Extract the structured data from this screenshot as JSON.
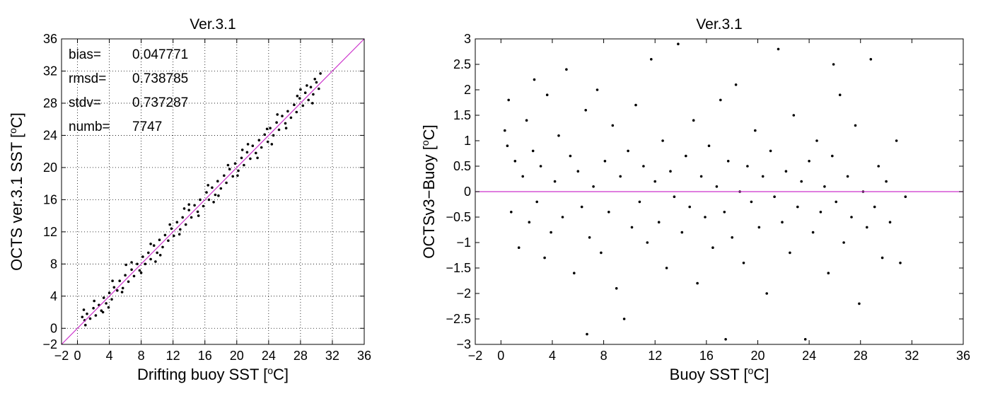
{
  "chart_data": [
    {
      "type": "scatter",
      "title": "Ver.3.1",
      "xlabel": "Drifting buoy SST [",
      "ylabel": "OCTS ver.3.1 SST [",
      "unit_suffix": "C]",
      "unit_super": "o",
      "xlim": [
        -2,
        36
      ],
      "ylim": [
        -2,
        36
      ],
      "xticks": [
        -2,
        0,
        4,
        8,
        12,
        16,
        20,
        24,
        28,
        32,
        36
      ],
      "yticks": [
        -2,
        0,
        4,
        8,
        12,
        16,
        20,
        24,
        28,
        32,
        36
      ],
      "grid": true,
      "reference_line": {
        "type": "identity",
        "color": "#cc33cc"
      },
      "point_color": "#000000",
      "stats": [
        {
          "label": "bias=",
          "value": "0.047771"
        },
        {
          "label": "rmsd=",
          "value": "0.738785"
        },
        {
          "label": "stdv=",
          "value": "0.737287"
        },
        {
          "label": "numb=",
          "value": "7747"
        }
      ],
      "points": [
        [
          0.6,
          1.4
        ],
        [
          0.9,
          1.0
        ],
        [
          1.2,
          1.8
        ],
        [
          1.6,
          1.2
        ],
        [
          2.0,
          2.5
        ],
        [
          2.3,
          1.6
        ],
        [
          2.7,
          2.9
        ],
        [
          3.0,
          2.2
        ],
        [
          3.3,
          3.8
        ],
        [
          3.6,
          3.1
        ],
        [
          4.0,
          4.4
        ],
        [
          4.3,
          3.6
        ],
        [
          4.6,
          5.1
        ],
        [
          5.0,
          4.7
        ],
        [
          5.3,
          5.9
        ],
        [
          5.7,
          5.0
        ],
        [
          6.0,
          6.6
        ],
        [
          6.4,
          5.8
        ],
        [
          6.8,
          7.3
        ],
        [
          7.1,
          6.5
        ],
        [
          7.5,
          8.0
        ],
        [
          7.8,
          7.2
        ],
        [
          8.2,
          8.9
        ],
        [
          8.5,
          8.0
        ],
        [
          8.9,
          9.4
        ],
        [
          9.2,
          8.6
        ],
        [
          9.6,
          10.3
        ],
        [
          10.0,
          9.4
        ],
        [
          10.3,
          11.0
        ],
        [
          10.7,
          10.1
        ],
        [
          11.0,
          11.6
        ],
        [
          11.4,
          10.9
        ],
        [
          11.8,
          12.4
        ],
        [
          12.1,
          11.5
        ],
        [
          12.5,
          13.2
        ],
        [
          12.9,
          12.3
        ],
        [
          13.2,
          13.8
        ],
        [
          13.6,
          12.9
        ],
        [
          14.0,
          14.7
        ],
        [
          14.3,
          13.8
        ],
        [
          14.7,
          15.3
        ],
        [
          15.1,
          14.5
        ],
        [
          15.4,
          16.0
        ],
        [
          15.8,
          15.2
        ],
        [
          16.2,
          16.9
        ],
        [
          16.5,
          16.0
        ],
        [
          16.9,
          17.5
        ],
        [
          17.3,
          16.6
        ],
        [
          17.6,
          18.3
        ],
        [
          18.0,
          17.4
        ],
        [
          18.4,
          19.0
        ],
        [
          18.7,
          18.1
        ],
        [
          19.1,
          19.8
        ],
        [
          19.5,
          18.9
        ],
        [
          19.8,
          20.5
        ],
        [
          20.2,
          19.6
        ],
        [
          20.6,
          21.2
        ],
        [
          20.9,
          20.3
        ],
        [
          21.3,
          21.9
        ],
        [
          21.7,
          21.1
        ],
        [
          22.0,
          22.7
        ],
        [
          22.4,
          21.8
        ],
        [
          22.8,
          23.4
        ],
        [
          23.1,
          22.5
        ],
        [
          23.5,
          24.1
        ],
        [
          23.9,
          23.2
        ],
        [
          24.2,
          24.9
        ],
        [
          24.6,
          24.0
        ],
        [
          25.0,
          25.6
        ],
        [
          25.3,
          24.7
        ],
        [
          25.7,
          26.4
        ],
        [
          26.1,
          25.5
        ],
        [
          26.4,
          27.0
        ],
        [
          26.8,
          26.2
        ],
        [
          27.2,
          27.8
        ],
        [
          27.5,
          26.9
        ],
        [
          27.9,
          28.6
        ],
        [
          28.3,
          27.7
        ],
        [
          28.6,
          29.3
        ],
        [
          29.0,
          28.4
        ],
        [
          29.3,
          30.0
        ],
        [
          29.6,
          29.1
        ],
        [
          30.0,
          30.6
        ],
        [
          30.3,
          29.8
        ],
        [
          29.8,
          31.0
        ],
        [
          29.5,
          28.0
        ],
        [
          28.8,
          30.2
        ],
        [
          27.6,
          28.9
        ],
        [
          26.2,
          24.9
        ],
        [
          25.1,
          26.6
        ],
        [
          23.8,
          24.8
        ],
        [
          22.6,
          21.2
        ],
        [
          21.4,
          22.9
        ],
        [
          20.1,
          19.0
        ],
        [
          18.9,
          20.3
        ],
        [
          17.7,
          16.5
        ],
        [
          16.4,
          17.8
        ],
        [
          15.2,
          14.0
        ],
        [
          14.0,
          15.4
        ],
        [
          12.8,
          11.7
        ],
        [
          11.6,
          12.9
        ],
        [
          10.4,
          9.1
        ],
        [
          9.2,
          10.5
        ],
        [
          8.0,
          6.9
        ],
        [
          6.8,
          8.2
        ],
        [
          5.6,
          4.5
        ],
        [
          4.4,
          5.9
        ],
        [
          3.2,
          2.0
        ],
        [
          2.1,
          3.4
        ],
        [
          1.0,
          0.4
        ],
        [
          30.5,
          31.7
        ],
        [
          0.8,
          2.3
        ],
        [
          3.9,
          2.6
        ],
        [
          6.1,
          7.9
        ],
        [
          9.8,
          8.3
        ],
        [
          13.4,
          14.9
        ],
        [
          17.1,
          15.7
        ],
        [
          20.7,
          22.2
        ],
        [
          24.4,
          22.9
        ],
        [
          28.0,
          29.7
        ]
      ]
    },
    {
      "type": "scatter",
      "title": "Ver.3.1",
      "xlabel": "Buoy SST [",
      "ylabel": "OCTSv3−Buoy [",
      "unit_suffix": "C]",
      "unit_super": "o",
      "xlim": [
        -2,
        36
      ],
      "ylim": [
        -3,
        3
      ],
      "xticks": [
        -2,
        0,
        4,
        8,
        12,
        16,
        20,
        24,
        28,
        32,
        36
      ],
      "xtick_labels": [
        "−2",
        "0",
        "4",
        "8",
        "12",
        "16",
        "20",
        "24",
        "28",
        "32",
        "36"
      ],
      "yticks": [
        -3,
        -2.5,
        -2,
        -1.5,
        -1,
        -0.5,
        0,
        0.5,
        1,
        1.5,
        2,
        2.5,
        3
      ],
      "ytick_labels": [
        "−3",
        "−2.5",
        "−2",
        "−1.5",
        "−1",
        "−0.5",
        "0",
        "0.5",
        "1",
        "1.5",
        "2",
        "2.5",
        "3"
      ],
      "grid": false,
      "reference_line": {
        "type": "zero",
        "color": "#cc33cc"
      },
      "point_color": "#000000",
      "points": [
        [
          0.3,
          1.2
        ],
        [
          0.5,
          0.9
        ],
        [
          0.8,
          -0.4
        ],
        [
          1.1,
          0.6
        ],
        [
          1.4,
          -1.1
        ],
        [
          1.7,
          0.3
        ],
        [
          2.0,
          1.4
        ],
        [
          2.2,
          -0.6
        ],
        [
          2.5,
          0.8
        ],
        [
          2.8,
          -0.2
        ],
        [
          3.1,
          0.5
        ],
        [
          3.4,
          -1.3
        ],
        [
          3.6,
          1.9
        ],
        [
          3.9,
          -0.8
        ],
        [
          4.2,
          0.2
        ],
        [
          4.5,
          1.1
        ],
        [
          4.8,
          -0.5
        ],
        [
          5.1,
          2.4
        ],
        [
          5.4,
          0.7
        ],
        [
          5.7,
          -1.6
        ],
        [
          6.0,
          0.4
        ],
        [
          6.3,
          -0.3
        ],
        [
          6.6,
          1.6
        ],
        [
          6.9,
          -0.9
        ],
        [
          7.2,
          0.1
        ],
        [
          7.5,
          2.0
        ],
        [
          7.8,
          -1.2
        ],
        [
          8.1,
          0.6
        ],
        [
          8.4,
          -0.4
        ],
        [
          8.7,
          1.3
        ],
        [
          9.0,
          -1.9
        ],
        [
          9.3,
          0.3
        ],
        [
          9.6,
          -2.5
        ],
        [
          9.9,
          0.8
        ],
        [
          10.2,
          -0.7
        ],
        [
          10.5,
          1.7
        ],
        [
          10.8,
          -0.2
        ],
        [
          11.1,
          0.5
        ],
        [
          11.4,
          -1.0
        ],
        [
          11.7,
          2.6
        ],
        [
          12.0,
          0.2
        ],
        [
          12.3,
          -0.6
        ],
        [
          12.6,
          1.0
        ],
        [
          12.9,
          -1.5
        ],
        [
          13.2,
          0.4
        ],
        [
          13.5,
          -0.1
        ],
        [
          13.8,
          2.9
        ],
        [
          14.1,
          -0.8
        ],
        [
          14.4,
          0.7
        ],
        [
          14.7,
          -0.3
        ],
        [
          15.0,
          1.4
        ],
        [
          15.3,
          -1.8
        ],
        [
          15.6,
          0.3
        ],
        [
          15.9,
          -0.5
        ],
        [
          16.2,
          0.9
        ],
        [
          16.5,
          -1.1
        ],
        [
          16.8,
          0.1
        ],
        [
          17.1,
          1.8
        ],
        [
          17.4,
          -0.4
        ],
        [
          17.7,
          0.6
        ],
        [
          18.0,
          -0.9
        ],
        [
          18.3,
          2.1
        ],
        [
          18.6,
          0.0
        ],
        [
          18.9,
          -1.4
        ],
        [
          19.2,
          0.5
        ],
        [
          19.5,
          -0.2
        ],
        [
          19.8,
          1.2
        ],
        [
          20.1,
          -0.7
        ],
        [
          20.4,
          0.3
        ],
        [
          20.7,
          -2.0
        ],
        [
          21.0,
          0.8
        ],
        [
          21.3,
          -0.1
        ],
        [
          21.6,
          2.8
        ],
        [
          21.9,
          -0.6
        ],
        [
          22.2,
          0.4
        ],
        [
          22.5,
          -1.2
        ],
        [
          22.8,
          1.5
        ],
        [
          23.1,
          -0.3
        ],
        [
          23.4,
          0.2
        ],
        [
          23.7,
          -2.9
        ],
        [
          24.0,
          0.6
        ],
        [
          24.3,
          -0.8
        ],
        [
          24.6,
          1.0
        ],
        [
          24.9,
          -0.4
        ],
        [
          25.2,
          0.1
        ],
        [
          25.5,
          -1.6
        ],
        [
          25.8,
          0.7
        ],
        [
          26.1,
          -0.2
        ],
        [
          26.4,
          1.9
        ],
        [
          26.7,
          -1.0
        ],
        [
          27.0,
          0.3
        ],
        [
          27.3,
          -0.5
        ],
        [
          27.6,
          1.3
        ],
        [
          27.9,
          -2.2
        ],
        [
          28.2,
          0.0
        ],
        [
          28.5,
          -0.7
        ],
        [
          28.8,
          2.6
        ],
        [
          29.1,
          -0.3
        ],
        [
          29.4,
          0.5
        ],
        [
          29.7,
          -1.3
        ],
        [
          30.0,
          0.2
        ],
        [
          30.3,
          -0.6
        ],
        [
          30.8,
          1.0
        ],
        [
          31.1,
          -1.4
        ],
        [
          31.5,
          -0.1
        ],
        [
          0.6,
          1.8
        ],
        [
          2.6,
          2.2
        ],
        [
          6.7,
          -2.8
        ],
        [
          17.5,
          -2.9
        ],
        [
          25.9,
          2.5
        ]
      ]
    }
  ]
}
